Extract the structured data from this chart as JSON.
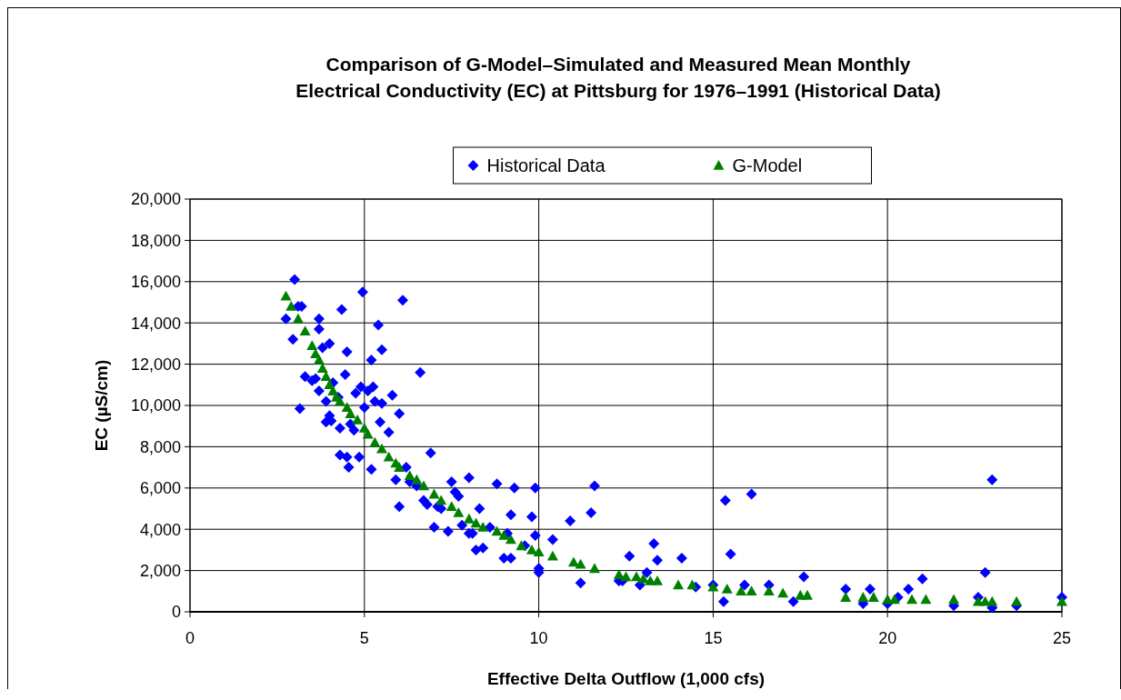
{
  "chart_data": {
    "type": "scatter",
    "title": "Comparison of G-Model–Simulated and Measured Mean Monthly\nElectrical Conductivity (EC) at Pittsburg for 1976–1991 (Historical Data)",
    "xlabel": "Effective Delta Outflow (1,000 cfs)",
    "ylabel": "EC (µS/cm)",
    "xlim": [
      0,
      25
    ],
    "ylim": [
      0,
      20000
    ],
    "xticks": [
      0,
      5,
      10,
      15,
      20,
      25
    ],
    "yticks": [
      {
        "value": 0,
        "label": "0"
      },
      {
        "value": 2000,
        "label": "2,000"
      },
      {
        "value": 4000,
        "label": "4,000"
      },
      {
        "value": 6000,
        "label": "6,000"
      },
      {
        "value": 8000,
        "label": "8,000"
      },
      {
        "value": 10000,
        "label": "10,000"
      },
      {
        "value": 12000,
        "label": "12,000"
      },
      {
        "value": 14000,
        "label": "14,000"
      },
      {
        "value": 16000,
        "label": "16,000"
      },
      {
        "value": 18000,
        "label": "18,000"
      },
      {
        "value": 20000,
        "label": "20,000"
      }
    ],
    "grid": true,
    "legend": "top",
    "series": [
      {
        "name": "Historical Data",
        "color": "#0000ff",
        "marker": "diamond",
        "x": [
          2.75,
          2.95,
          3.0,
          3.1,
          3.2,
          3.15,
          3.3,
          3.5,
          3.6,
          3.7,
          3.7,
          3.8,
          3.9,
          4.0,
          3.9,
          4.05,
          4.1,
          4.25,
          4.3,
          4.35,
          4.45,
          4.5,
          4.5,
          4.55,
          4.6,
          4.75,
          4.7,
          4.85,
          4.95,
          5.0,
          5.1,
          5.2,
          5.25,
          5.3,
          5.4,
          5.45,
          5.5,
          5.5,
          5.8,
          5.9,
          6.0,
          6.0,
          6.1,
          6.2,
          6.6,
          6.7,
          6.8,
          6.9,
          7.0,
          7.2,
          7.4,
          7.5,
          7.6,
          7.7,
          7.8,
          8.0,
          8.0,
          8.2,
          8.3,
          8.4,
          8.8,
          9.1,
          9.2,
          9.2,
          9.3,
          9.6,
          9.8,
          9.9,
          9.9,
          10.0,
          10.0,
          10.4,
          10.9,
          11.2,
          11.5,
          11.6,
          12.3,
          12.6,
          12.9,
          13.1,
          13.3,
          13.4,
          14.1,
          14.5,
          15.0,
          15.3,
          15.35,
          15.5,
          15.9,
          16.1,
          16.6,
          17.3,
          17.6,
          18.8,
          19.3,
          19.5,
          20.0,
          20.3,
          20.6,
          21.0,
          21.9,
          22.6,
          22.8,
          23.0,
          23.0,
          23.7,
          25.0,
          9.0,
          8.6,
          6.5,
          5.7,
          4.3,
          4.0,
          3.7,
          4.9,
          5.2,
          6.3,
          7.1,
          8.1,
          12.4
        ],
        "values": [
          14200,
          13200,
          16100,
          14800,
          14800,
          9850,
          11400,
          11200,
          11300,
          14200,
          13700,
          12800,
          9200,
          13000,
          10200,
          9250,
          11100,
          10400,
          7600,
          14650,
          11500,
          12600,
          7500,
          7000,
          9100,
          10600,
          8800,
          7500,
          15500,
          9900,
          10700,
          12200,
          10900,
          10200,
          13900,
          9200,
          12700,
          10100,
          10500,
          6400,
          5100,
          9600,
          15100,
          7000,
          11600,
          5400,
          5200,
          7700,
          4100,
          5000,
          3900,
          6300,
          5800,
          5600,
          4200,
          6500,
          3800,
          3000,
          5000,
          3100,
          6200,
          3800,
          4700,
          2600,
          6000,
          3200,
          4600,
          6000,
          3700,
          2100,
          1900,
          3500,
          4400,
          1400,
          4800,
          6100,
          1500,
          2700,
          1300,
          1900,
          3300,
          2500,
          2600,
          1200,
          1300,
          500,
          5400,
          2800,
          1300,
          5700,
          1300,
          500,
          1700,
          1100,
          400,
          1100,
          400,
          700,
          1100,
          1600,
          300,
          700,
          1900,
          6400,
          200,
          300,
          700,
          2600,
          4100,
          6100,
          8700,
          8900,
          9500,
          10700,
          10900,
          6900,
          6300,
          5100,
          3800,
          1500
        ]
      },
      {
        "name": "G-Model",
        "color": "#008000",
        "marker": "triangle",
        "x": [
          2.75,
          2.9,
          3.1,
          3.3,
          3.5,
          3.6,
          3.7,
          3.8,
          3.9,
          4.0,
          4.1,
          4.2,
          4.3,
          4.5,
          4.6,
          4.8,
          5.0,
          5.1,
          5.3,
          5.5,
          5.7,
          5.9,
          6.0,
          6.3,
          6.5,
          6.7,
          7.0,
          7.2,
          7.5,
          7.7,
          8.0,
          8.2,
          8.4,
          8.8,
          9.0,
          9.2,
          9.5,
          9.8,
          10.0,
          10.4,
          11.0,
          11.2,
          11.6,
          12.3,
          12.5,
          12.8,
          13.0,
          13.2,
          13.4,
          14.0,
          14.4,
          15.0,
          15.4,
          15.8,
          16.1,
          16.6,
          17.0,
          17.5,
          17.7,
          18.8,
          19.3,
          19.6,
          20.0,
          20.2,
          20.7,
          21.1,
          21.9,
          22.6,
          22.8,
          23.0,
          23.7,
          25.0
        ],
        "values": [
          15300,
          14800,
          14200,
          13600,
          12900,
          12500,
          12200,
          11800,
          11400,
          11000,
          10700,
          10400,
          10200,
          9900,
          9600,
          9300,
          8900,
          8600,
          8200,
          7900,
          7500,
          7200,
          7000,
          6600,
          6400,
          6100,
          5700,
          5400,
          5100,
          4800,
          4500,
          4300,
          4100,
          3900,
          3700,
          3500,
          3200,
          3000,
          2900,
          2700,
          2400,
          2300,
          2100,
          1800,
          1700,
          1700,
          1600,
          1500,
          1500,
          1300,
          1300,
          1200,
          1100,
          1000,
          1000,
          1000,
          900,
          800,
          800,
          700,
          700,
          700,
          600,
          600,
          600,
          600,
          600,
          500,
          500,
          500,
          500,
          500
        ]
      }
    ]
  }
}
